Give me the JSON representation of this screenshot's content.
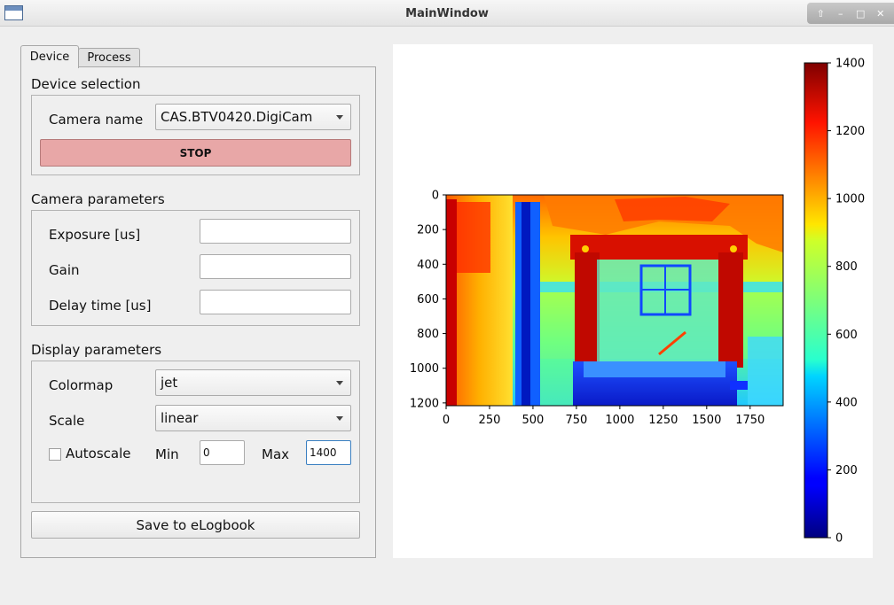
{
  "window": {
    "title": "MainWindow"
  },
  "tabs": [
    {
      "label": "Device"
    },
    {
      "label": "Process"
    }
  ],
  "device_selection": {
    "title": "Device selection",
    "camera_name_label": "Camera name",
    "camera_name_value": "CAS.BTV0420.DigiCam",
    "stop_label": "STOP"
  },
  "camera_parameters": {
    "title": "Camera parameters",
    "exposure_label": "Exposure [us]",
    "gain_label": "Gain",
    "delay_label": "Delay time [us]",
    "exposure_value": "",
    "gain_value": "",
    "delay_value": ""
  },
  "display_parameters": {
    "title": "Display parameters",
    "colormap_label": "Colormap",
    "colormap_value": "jet",
    "scale_label": "Scale",
    "scale_value": "linear",
    "autoscale_label": "Autoscale",
    "autoscale_checked": false,
    "min_label": "Min",
    "min_value": "0",
    "max_label": "Max",
    "max_value": "1400"
  },
  "save_label": "Save to eLogbook",
  "plot": {
    "x_ticks": [
      "0",
      "250",
      "500",
      "750",
      "1000",
      "1250",
      "1500",
      "1750"
    ],
    "y_ticks": [
      "0",
      "200",
      "400",
      "600",
      "800",
      "1000",
      "1200"
    ],
    "colorbar_ticks": [
      "0",
      "200",
      "400",
      "600",
      "800",
      "1000",
      "1200",
      "1400"
    ],
    "colormap": "jet"
  }
}
